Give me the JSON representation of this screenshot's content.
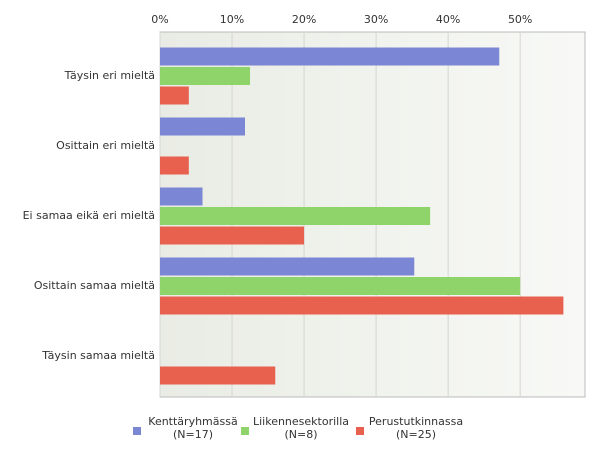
{
  "chart_data": {
    "type": "hbar",
    "categories": [
      "Täysin eri mieltä",
      "Osittain eri mieltä",
      "Ei samaa eikä eri mieltä",
      "Osittain samaa mieltä",
      "Täysin samaa mieltä"
    ],
    "series": [
      {
        "name": "Kenttäryhmässä (N=17)",
        "color": "#7b86d4",
        "values": [
          47.1,
          11.8,
          5.9,
          35.3,
          0
        ]
      },
      {
        "name": "Liikennesektorilla (N=8)",
        "color": "#8fd46a",
        "values": [
          12.5,
          0,
          37.5,
          50,
          0
        ]
      },
      {
        "name": "Perustutkinnassa (N=25)",
        "color": "#e8604e",
        "values": [
          4,
          4,
          20,
          56,
          16
        ]
      }
    ],
    "xlim": [
      0,
      59
    ],
    "xticks": [
      {
        "value": 0,
        "label": "0%"
      },
      {
        "value": 10,
        "label": "10%"
      },
      {
        "value": 20,
        "label": "20%"
      },
      {
        "value": 30,
        "label": "30%"
      },
      {
        "value": 40,
        "label": "40%"
      },
      {
        "value": 50,
        "label": "50%"
      }
    ],
    "grid": true
  }
}
